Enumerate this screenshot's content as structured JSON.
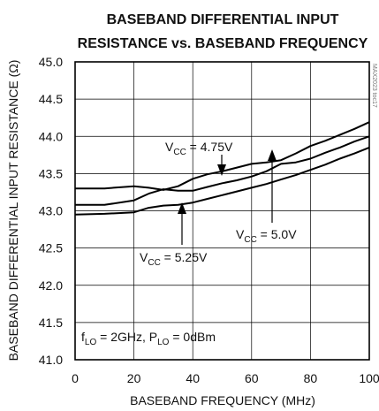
{
  "chart_data": {
    "type": "line",
    "title_lines": [
      "BASEBAND DIFFERENTIAL INPUT",
      "RESISTANCE vs. BASEBAND FREQUENCY"
    ],
    "xlabel": "BASEBAND FREQUENCY (MHz)",
    "ylabel": "BASEBAND DIFFERENTIAL INPUT RESISTANCE (Ω)",
    "xlim": [
      0,
      100
    ],
    "ylim": [
      41.0,
      45.0
    ],
    "x_ticks": [
      0,
      20,
      40,
      60,
      80,
      100
    ],
    "y_ticks": [
      "41.0",
      "41.5",
      "42.0",
      "42.5",
      "43.0",
      "43.5",
      "44.0",
      "44.5",
      "45.0"
    ],
    "grid": true,
    "watermark": "MAX2023 toc17",
    "conditions": {
      "f_lo": "2GHz",
      "p_lo": "0dBm"
    },
    "series": [
      {
        "name": "4.75V",
        "x": [
          0,
          10,
          20,
          25,
          30,
          35,
          40,
          45,
          50,
          55,
          60,
          65,
          70,
          75,
          80,
          85,
          90,
          95,
          100
        ],
        "y": [
          43.3,
          43.3,
          43.33,
          43.31,
          43.28,
          43.33,
          43.43,
          43.49,
          43.53,
          43.58,
          43.63,
          43.65,
          43.68,
          43.77,
          43.87,
          43.94,
          44.02,
          44.1,
          44.19
        ]
      },
      {
        "name": "5.0V",
        "x": [
          0,
          10,
          20,
          25,
          30,
          35,
          40,
          45,
          50,
          55,
          60,
          65,
          70,
          75,
          80,
          85,
          90,
          95,
          100
        ],
        "y": [
          43.08,
          43.08,
          43.14,
          43.23,
          43.29,
          43.27,
          43.27,
          43.32,
          43.37,
          43.41,
          43.46,
          43.53,
          43.63,
          43.65,
          43.7,
          43.78,
          43.85,
          43.93,
          44.0
        ]
      },
      {
        "name": "5.25V",
        "x": [
          0,
          10,
          20,
          25,
          30,
          35,
          40,
          45,
          50,
          55,
          60,
          65,
          70,
          75,
          80,
          85,
          90,
          95,
          100
        ],
        "y": [
          42.95,
          42.96,
          42.98,
          43.04,
          43.07,
          43.08,
          43.11,
          43.16,
          43.21,
          43.26,
          43.31,
          43.36,
          43.42,
          43.48,
          43.55,
          43.62,
          43.7,
          43.77,
          43.85
        ]
      }
    ],
    "labels": [
      {
        "prefix": "V",
        "sub": "CC",
        "suffix": " = 4.75V"
      },
      {
        "prefix": "V",
        "sub": "CC",
        "suffix": " = 5.0V"
      },
      {
        "prefix": "V",
        "sub": "CC",
        "suffix": " = 5.25V"
      }
    ]
  }
}
